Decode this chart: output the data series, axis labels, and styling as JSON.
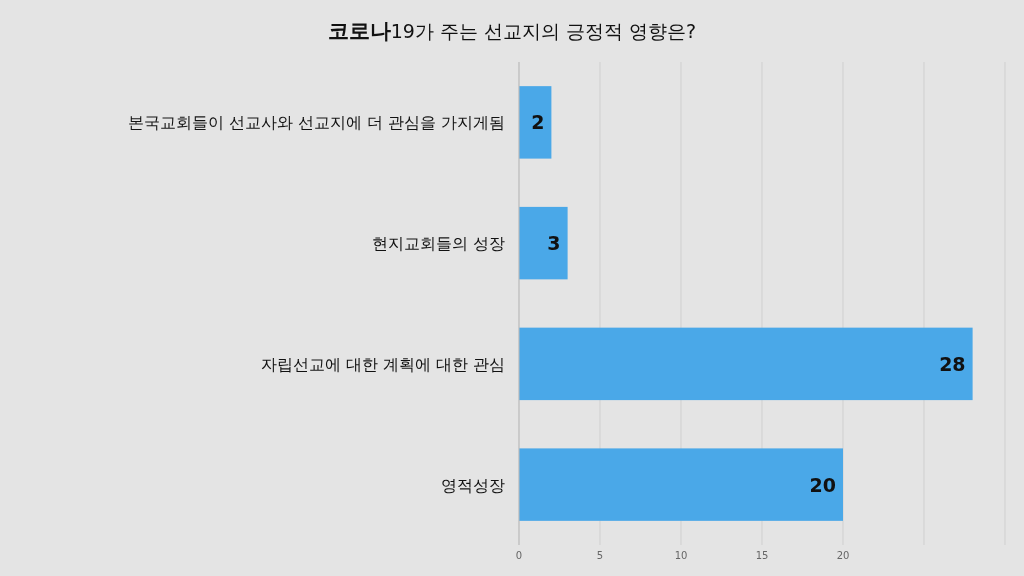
{
  "chart_data": {
    "type": "bar",
    "orientation": "horizontal",
    "title": "**코로나**19가 주는 선교지의 긍정적 영향은?",
    "categories": [
      "본국교회들이 선교사와 선교지에 더 관심을 가지게됨",
      "현지교회들의 성장",
      "자립선교에 대한 계획에 대한 관심",
      "영적성장"
    ],
    "values": [
      2,
      3,
      28,
      20
    ],
    "color": "#4aa8e8",
    "data_labels": true,
    "grid": "x",
    "xlim": [
      0,
      30
    ],
    "xticks": [
      0,
      5,
      10,
      15,
      20,
      {
        "value": 25,
        "label": null
      },
      {
        "value": 30,
        "label": null
      }
    ]
  }
}
